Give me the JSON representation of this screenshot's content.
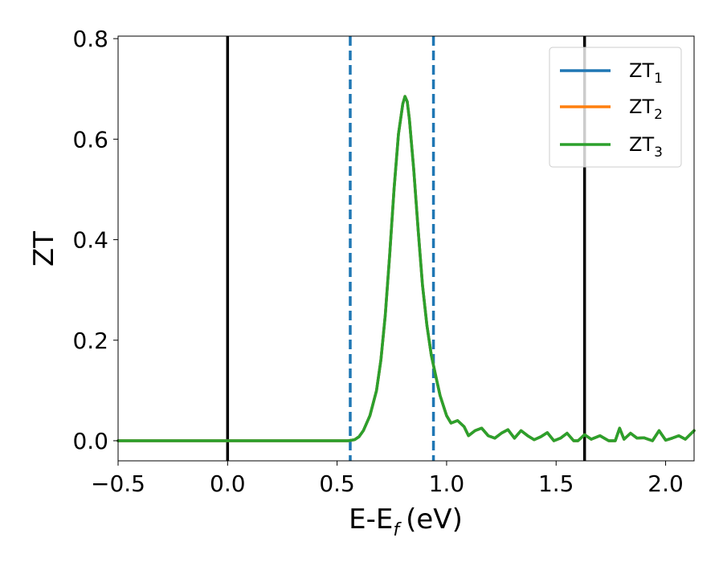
{
  "chart_data": {
    "type": "line",
    "xlabel": "E-E",
    "xlabel_sub": "f",
    "xlabel_unit": "(eV)",
    "ylabel": "ZT",
    "xlim": [
      -0.5,
      2.13
    ],
    "ylim": [
      -0.04,
      0.805
    ],
    "grid": false,
    "legend_position": "top-right",
    "x_ticks": [
      -0.5,
      0.0,
      0.5,
      1.0,
      1.5,
      2.0
    ],
    "x_tick_labels": [
      "−0.5",
      "0.0",
      "0.5",
      "1.0",
      "1.5",
      "2.0"
    ],
    "y_ticks": [
      0.0,
      0.2,
      0.4,
      0.6,
      0.8
    ],
    "y_tick_labels": [
      "0.0",
      "0.2",
      "0.4",
      "0.6",
      "0.8"
    ],
    "vertical_lines": [
      {
        "x": 0.0,
        "style": "solid",
        "color": "#000000"
      },
      {
        "x": 0.56,
        "style": "dashed",
        "color": "#1f77b4"
      },
      {
        "x": 0.94,
        "style": "dashed",
        "color": "#1f77b4"
      },
      {
        "x": 1.63,
        "style": "solid",
        "color": "#000000"
      }
    ],
    "x": [
      -0.5,
      -0.3,
      -0.1,
      0.1,
      0.3,
      0.5,
      0.55,
      0.58,
      0.6,
      0.62,
      0.65,
      0.68,
      0.7,
      0.72,
      0.74,
      0.76,
      0.78,
      0.8,
      0.81,
      0.82,
      0.83,
      0.85,
      0.87,
      0.89,
      0.91,
      0.93,
      0.95,
      0.97,
      1.0,
      1.02,
      1.05,
      1.08,
      1.1,
      1.13,
      1.16,
      1.19,
      1.22,
      1.25,
      1.28,
      1.31,
      1.34,
      1.37,
      1.4,
      1.43,
      1.46,
      1.49,
      1.52,
      1.55,
      1.58,
      1.6,
      1.63,
      1.66,
      1.7,
      1.74,
      1.77,
      1.79,
      1.81,
      1.84,
      1.87,
      1.9,
      1.94,
      1.97,
      2.0,
      2.03,
      2.06,
      2.09,
      2.13
    ],
    "series": [
      {
        "name": "ZT",
        "name_sub": "1",
        "color": "#1f77b4",
        "values": [
          0,
          0,
          0,
          0,
          0,
          0,
          0.0,
          0.002,
          0.008,
          0.02,
          0.05,
          0.1,
          0.16,
          0.25,
          0.37,
          0.5,
          0.61,
          0.67,
          0.685,
          0.675,
          0.64,
          0.54,
          0.42,
          0.31,
          0.23,
          0.17,
          0.13,
          0.09,
          0.05,
          0.035,
          0.04,
          0.028,
          0.01,
          0.02,
          0.025,
          0.01,
          0.005,
          0.015,
          0.022,
          0.005,
          0.02,
          0.01,
          0.002,
          0.008,
          0.016,
          0.0,
          0.005,
          0.015,
          0.0,
          0.0,
          0.012,
          0.003,
          0.01,
          0.0,
          0.0,
          0.025,
          0.003,
          0.015,
          0.005,
          0.006,
          0.0,
          0.02,
          0.001,
          0.005,
          0.01,
          0.003,
          0.02
        ]
      },
      {
        "name": "ZT",
        "name_sub": "2",
        "color": "#ff7f0e",
        "values": [
          0,
          0,
          0,
          0,
          0,
          0,
          0.0,
          0.002,
          0.008,
          0.02,
          0.05,
          0.1,
          0.16,
          0.25,
          0.37,
          0.5,
          0.61,
          0.67,
          0.685,
          0.675,
          0.64,
          0.54,
          0.42,
          0.31,
          0.23,
          0.17,
          0.13,
          0.09,
          0.05,
          0.035,
          0.04,
          0.028,
          0.01,
          0.02,
          0.025,
          0.01,
          0.005,
          0.015,
          0.022,
          0.005,
          0.02,
          0.01,
          0.002,
          0.008,
          0.016,
          0.0,
          0.005,
          0.015,
          0.0,
          0.0,
          0.012,
          0.003,
          0.01,
          0.0,
          0.0,
          0.025,
          0.003,
          0.015,
          0.005,
          0.006,
          0.0,
          0.02,
          0.001,
          0.005,
          0.01,
          0.003,
          0.02
        ]
      },
      {
        "name": "ZT",
        "name_sub": "3",
        "color": "#2ca02c",
        "values": [
          0,
          0,
          0,
          0,
          0,
          0,
          0.0,
          0.002,
          0.008,
          0.02,
          0.05,
          0.1,
          0.16,
          0.25,
          0.37,
          0.5,
          0.61,
          0.67,
          0.685,
          0.675,
          0.64,
          0.54,
          0.42,
          0.31,
          0.23,
          0.17,
          0.13,
          0.09,
          0.05,
          0.035,
          0.04,
          0.028,
          0.01,
          0.02,
          0.025,
          0.01,
          0.005,
          0.015,
          0.022,
          0.005,
          0.02,
          0.01,
          0.002,
          0.008,
          0.016,
          0.0,
          0.005,
          0.015,
          0.0,
          0.0,
          0.012,
          0.003,
          0.01,
          0.0,
          0.0,
          0.025,
          0.003,
          0.015,
          0.005,
          0.006,
          0.0,
          0.02,
          0.001,
          0.005,
          0.01,
          0.003,
          0.02
        ]
      }
    ]
  }
}
